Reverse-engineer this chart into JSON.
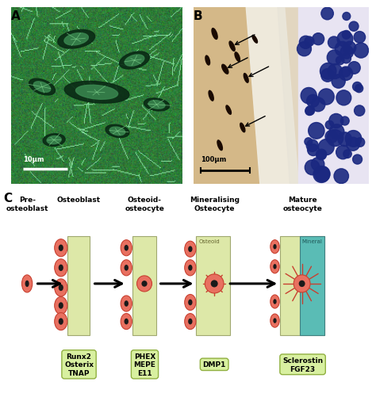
{
  "fig_width": 4.74,
  "fig_height": 5.02,
  "dpi": 100,
  "bg_color": "#ffffff",
  "cell_fill": "#e87060",
  "cell_edge": "#c84030",
  "nucleus_color": "#1a1a1a",
  "label_box_bg": "#d8f0a0",
  "label_box_edge": "#90b040",
  "osteoid_color": "#dde8a8",
  "mineral_color": "#5abcb5",
  "stage_titles": [
    "Pre-\nosteoblast",
    "Osteoblast",
    "Osteoid-\nosteocyte",
    "Mineralising\nOsteocyte",
    "Mature\nosteocyte"
  ],
  "marker_texts": [
    "Runx2\nOsterix\nTNAP",
    "PHEX\nMEPE\nE11",
    "DMP1",
    "Sclerostin\nFGF23"
  ],
  "panel_A_bg": "#2a6a40",
  "panel_A_lacunae": [
    [
      0.5,
      0.52,
      0.38,
      0.12,
      -5
    ],
    [
      0.38,
      0.82,
      0.22,
      0.1,
      10
    ],
    [
      0.18,
      0.55,
      0.16,
      0.08,
      -20
    ],
    [
      0.72,
      0.7,
      0.18,
      0.09,
      15
    ],
    [
      0.62,
      0.3,
      0.14,
      0.07,
      -10
    ],
    [
      0.25,
      0.25,
      0.13,
      0.07,
      5
    ],
    [
      0.85,
      0.45,
      0.15,
      0.07,
      -8
    ]
  ],
  "panel_B_bone_color": "#c8b090",
  "panel_B_marrow_color": "#e8e4f0",
  "panel_B_white_color": "#f5f0e8",
  "panel_B_cell_color": "#1a2a80"
}
